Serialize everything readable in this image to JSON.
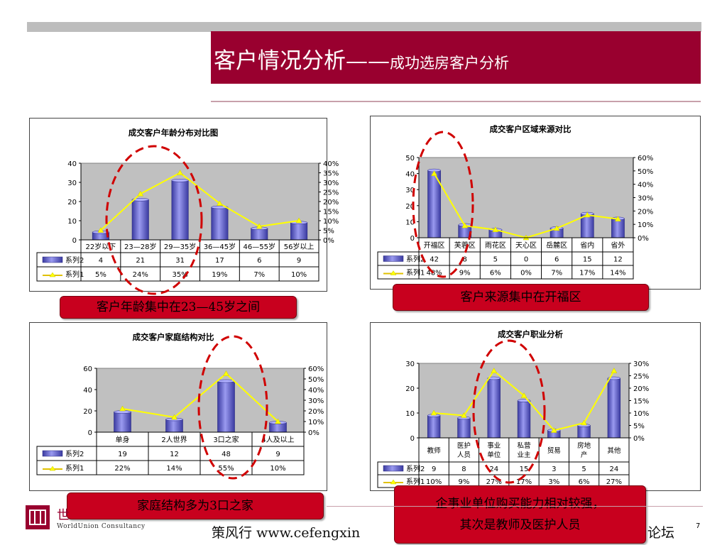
{
  "slide": {
    "title_main": "客户情况分析——",
    "title_sub": "成功选房客户分析",
    "footer_left": "策风行 www.cefengxin",
    "footer_right": "论坛",
    "page_number": "7",
    "logo_text": "WorldUnion Consultancy",
    "logo_mark": "世",
    "accent_color": "#99002f",
    "callout_color": "#c8001e"
  },
  "callouts": {
    "age": "客户年龄集中在23—45岁之间",
    "area": "客户来源集中在开福区",
    "family": "家庭结构多为3口之家",
    "job_line1": "企事业单位购买能力相对较强，",
    "job_line2": "其次是教师及医护人员"
  },
  "chart_data": [
    {
      "type": "bar",
      "title": "成交客户年龄分布对比图",
      "categories": [
        "22岁以下",
        "23—28岁",
        "29—35岁",
        "36—45岁",
        "46—55岁",
        "56岁以上"
      ],
      "series": [
        {
          "name": "系列2",
          "type": "bar",
          "values": [
            4,
            21,
            31,
            17,
            6,
            9
          ],
          "labels": [
            "4",
            "21",
            "31",
            "17",
            "6",
            "9"
          ]
        },
        {
          "name": "系列1",
          "type": "line",
          "values": [
            5,
            24,
            35,
            19,
            7,
            10
          ],
          "labels": [
            "5%",
            "24%",
            "35%",
            "19%",
            "7%",
            "10%"
          ]
        }
      ],
      "ylim": [
        0,
        40
      ],
      "yticks": [
        "40",
        "30",
        "20",
        "10",
        "0"
      ],
      "y2lim": [
        0,
        40
      ],
      "y2ticks": [
        "40%",
        "35%",
        "30%",
        "25%",
        "20%",
        "15%",
        "10%",
        "5%",
        "0%"
      ]
    },
    {
      "type": "bar",
      "title": "成交客户区域来源对比",
      "categories": [
        "开福区",
        "芙蓉区",
        "雨花区",
        "天心区",
        "岳麓区",
        "省内",
        "省外"
      ],
      "series": [
        {
          "name": "系列2",
          "type": "bar",
          "values": [
            42,
            8,
            5,
            0,
            6,
            15,
            12
          ],
          "labels": [
            "42",
            "8",
            "5",
            "0",
            "6",
            "15",
            "12"
          ]
        },
        {
          "name": "系列1",
          "type": "line",
          "values": [
            48,
            9,
            6,
            0,
            7,
            17,
            14
          ],
          "labels": [
            "48%",
            "9%",
            "6%",
            "0%",
            "7%",
            "17%",
            "14%"
          ]
        }
      ],
      "ylim": [
        0,
        50
      ],
      "yticks": [
        "50",
        "40",
        "30",
        "20",
        "10",
        "0"
      ],
      "y2lim": [
        0,
        60
      ],
      "y2ticks": [
        "60%",
        "50%",
        "40%",
        "30%",
        "20%",
        "10%",
        "0%"
      ]
    },
    {
      "type": "bar",
      "title": "成交客户家庭结构对比",
      "categories": [
        "单身",
        "2人世界",
        "3口之家",
        "4人及以上"
      ],
      "series": [
        {
          "name": "系列2",
          "type": "bar",
          "values": [
            19,
            12,
            48,
            9
          ],
          "labels": [
            "19",
            "12",
            "48",
            "9"
          ]
        },
        {
          "name": "系列1",
          "type": "line",
          "values": [
            22,
            14,
            55,
            10
          ],
          "labels": [
            "22%",
            "14%",
            "55%",
            "10%"
          ]
        }
      ],
      "ylim": [
        0,
        60
      ],
      "yticks": [
        "60",
        "40",
        "20",
        "0"
      ],
      "y2lim": [
        0,
        60
      ],
      "y2ticks": [
        "60%",
        "50%",
        "40%",
        "30%",
        "20%",
        "10%",
        "0%"
      ]
    },
    {
      "type": "bar",
      "title": "成交客户职业分析",
      "categories": [
        "教师",
        "医护人员",
        "事业单位",
        "私营业主",
        "贸易",
        "房地产",
        "其他"
      ],
      "series": [
        {
          "name": "系列2",
          "type": "bar",
          "values": [
            9,
            8,
            24,
            15,
            3,
            5,
            24
          ],
          "labels": [
            "9",
            "8",
            "24",
            "15",
            "3",
            "5",
            "24"
          ]
        },
        {
          "name": "系列1",
          "type": "line",
          "values": [
            10,
            9,
            27,
            17,
            3,
            6,
            27
          ],
          "labels": [
            "10%",
            "9%",
            "27%",
            "17%",
            "3%",
            "6%",
            "27%"
          ]
        }
      ],
      "ylim": [
        0,
        30
      ],
      "yticks": [
        "30",
        "20",
        "10",
        "0"
      ],
      "y2lim": [
        0,
        30
      ],
      "y2ticks": [
        "30%",
        "25%",
        "20%",
        "15%",
        "10%",
        "5%",
        "0%"
      ]
    }
  ]
}
